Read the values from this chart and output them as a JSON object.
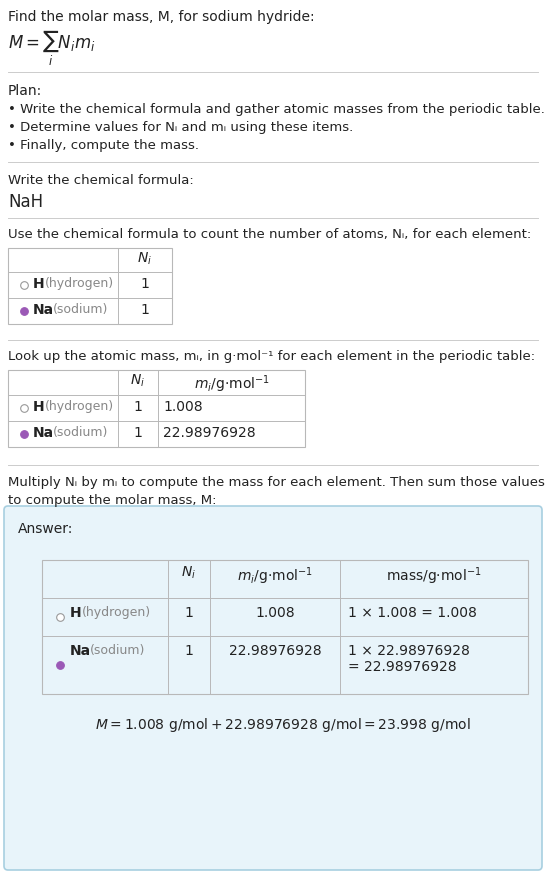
{
  "bg_color": "#ffffff",
  "answer_bg": "#e8f4fa",
  "answer_border": "#a8cfe0",
  "table_border": "#b8b8b8",
  "sep_color": "#cccccc",
  "text_dark": "#222222",
  "text_gray": "#888888",
  "na_dot_color": "#9b59b6",
  "title": "Find the molar mass, M, for sodium hydride:",
  "plan_header": "Plan:",
  "plan_b1": "• Write the chemical formula and gather atomic masses from the periodic table.",
  "plan_b2": "• Determine values for Nᵢ and mᵢ using these items.",
  "plan_b3": "• Finally, compute the mass.",
  "formula_label": "Write the chemical formula:",
  "formula_value": "NaH",
  "count_label": "Use the chemical formula to count the number of atoms, Nᵢ, for each element:",
  "lookup_label": "Look up the atomic mass, mᵢ, in g·mol⁻¹ for each element in the periodic table:",
  "multiply_label1": "Multiply Nᵢ by mᵢ to compute the mass for each element. Then sum those values",
  "multiply_label2": "to compute the molar mass, M:",
  "answer_label": "Answer:",
  "final_eq": "M = 1.008 g/mol + 22.98976928 g/mol = 23.998 g/mol"
}
